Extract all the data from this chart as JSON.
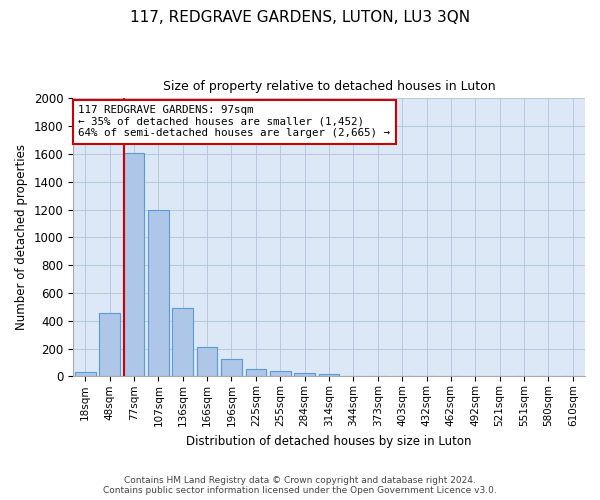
{
  "title": "117, REDGRAVE GARDENS, LUTON, LU3 3QN",
  "subtitle": "Size of property relative to detached houses in Luton",
  "xlabel": "Distribution of detached houses by size in Luton",
  "ylabel": "Number of detached properties",
  "bar_color": "#aec6e8",
  "bar_edge_color": "#5a9bd5",
  "background_color": "#ffffff",
  "plot_bg_color": "#dce8f5",
  "grid_color": "#b0c4de",
  "annotation_box_edge_color": "#cc0000",
  "property_line_color": "#cc0000",
  "categories": [
    "18sqm",
    "48sqm",
    "77sqm",
    "107sqm",
    "136sqm",
    "166sqm",
    "196sqm",
    "225sqm",
    "255sqm",
    "284sqm",
    "314sqm",
    "344sqm",
    "373sqm",
    "403sqm",
    "432sqm",
    "462sqm",
    "492sqm",
    "521sqm",
    "551sqm",
    "580sqm",
    "610sqm"
  ],
  "values": [
    35,
    455,
    1610,
    1195,
    490,
    210,
    125,
    50,
    40,
    25,
    18,
    0,
    0,
    0,
    0,
    0,
    0,
    0,
    0,
    0,
    0
  ],
  "property_label": "117 REDGRAVE GARDENS: 97sqm",
  "annotation_line1": "← 35% of detached houses are smaller (1,452)",
  "annotation_line2": "64% of semi-detached houses are larger (2,665) →",
  "ylim": [
    0,
    2000
  ],
  "yticks": [
    0,
    200,
    400,
    600,
    800,
    1000,
    1200,
    1400,
    1600,
    1800,
    2000
  ],
  "footer_line1": "Contains HM Land Registry data © Crown copyright and database right 2024.",
  "footer_line2": "Contains public sector information licensed under the Open Government Licence v3.0.",
  "figsize": [
    6.0,
    5.0
  ],
  "dpi": 100,
  "property_sqm": 97
}
